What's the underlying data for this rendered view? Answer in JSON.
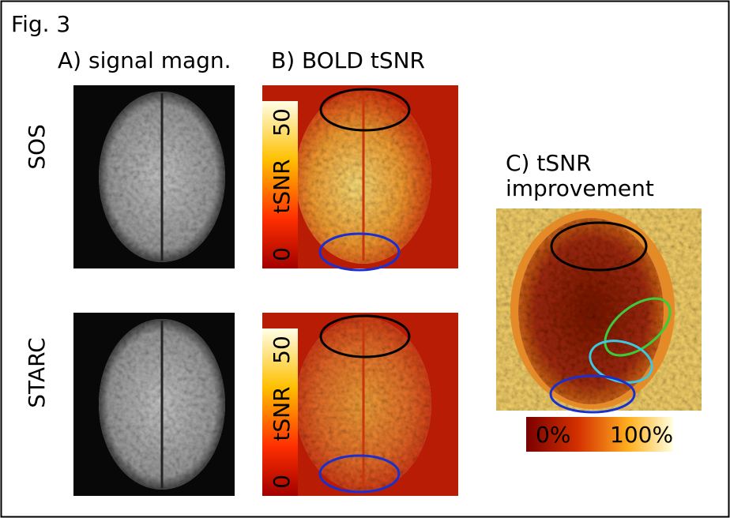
{
  "figure": {
    "label": "Fig. 3",
    "columns": {
      "a": "A) signal magn.",
      "b": "B) BOLD tSNR",
      "c_line1": "C) tSNR",
      "c_line2": "improvement"
    },
    "rows": [
      "SOS",
      "STARC"
    ],
    "colorbar_b": {
      "top": "50",
      "label": "tSNR",
      "bottom": "0"
    },
    "colorbar_c": {
      "left": "0%",
      "right": "100%"
    }
  }
}
